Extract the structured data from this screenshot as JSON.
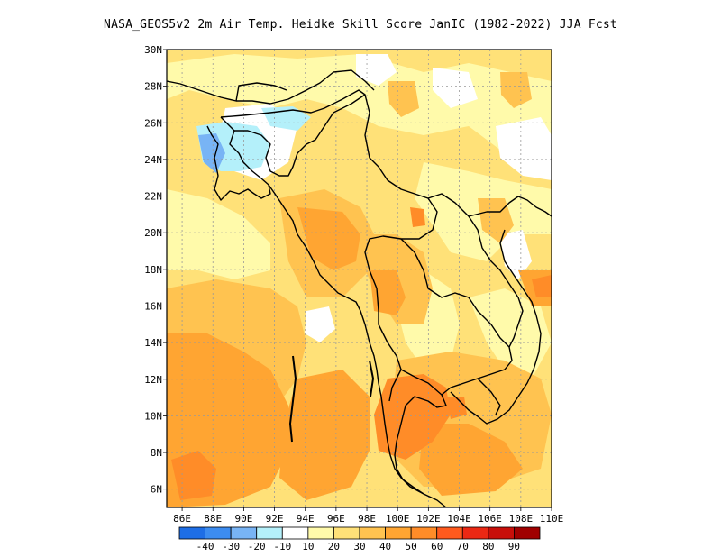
{
  "title": "NASA_GEOS5v2  2m Air Temp. Heidke Skill Score JanIC (1982-2022) JJA Fcst",
  "map": {
    "lat_range": [
      5,
      30
    ],
    "lon_range": [
      85,
      110
    ],
    "lat_ticks": [
      "6N",
      "8N",
      "10N",
      "12N",
      "14N",
      "16N",
      "18N",
      "20N",
      "22N",
      "24N",
      "26N",
      "28N",
      "30N"
    ],
    "lon_ticks": [
      "86E",
      "88E",
      "90E",
      "92E",
      "94E",
      "96E",
      "98E",
      "100E",
      "102E",
      "104E",
      "106E",
      "108E",
      "110E"
    ]
  },
  "colorbar": {
    "colors": [
      "#1e6ee6",
      "#3c8cf0",
      "#78b4f5",
      "#b4f0fa",
      "#ffffff",
      "#fffaaa",
      "#ffe178",
      "#ffc350",
      "#ffa532",
      "#ff8c28",
      "#ff5a1e",
      "#eb2814",
      "#c80f0a",
      "#a00000"
    ],
    "labels": [
      "-40",
      "-30",
      "-20",
      "-10",
      "10",
      "20",
      "30",
      "40",
      "50",
      "60",
      "70",
      "80",
      "90"
    ]
  },
  "fields": {
    "regions": [
      {
        "name": "base",
        "color": "#ffe178"
      },
      {
        "name": "south-andaman",
        "color": "#ffa532"
      },
      {
        "name": "gulf-thailand",
        "color": "#ff8c28"
      },
      {
        "name": "bangladesh-cold",
        "color": "#b4f0fa"
      }
    ]
  }
}
